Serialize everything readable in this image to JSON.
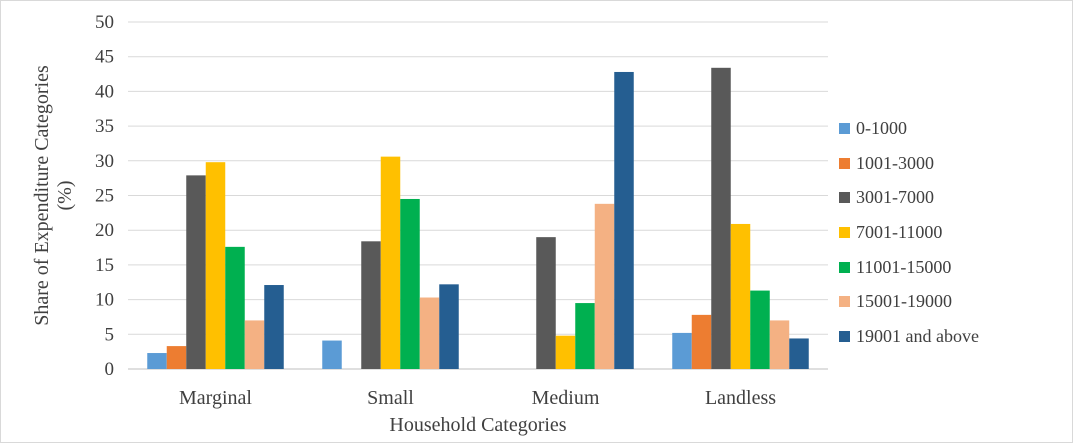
{
  "chart_data": {
    "type": "bar",
    "title": "",
    "xlabel": "Household Categories",
    "ylabel": "Share of Expenditure Categories (%)",
    "ylim": [
      0,
      50
    ],
    "yticks": [
      "0",
      "5",
      "10",
      "15",
      "20",
      "25",
      "30",
      "35",
      "40",
      "45",
      "50"
    ],
    "grid": true,
    "legend_position": "right",
    "categories": [
      "Marginal",
      "Small",
      "Medium",
      "Landless"
    ],
    "series": [
      {
        "name": "0-1000",
        "color": "#5b9bd5",
        "values": [
          2.3,
          4.1,
          0,
          5.2
        ]
      },
      {
        "name": "1001-3000",
        "color": "#ed7d31",
        "values": [
          3.3,
          0,
          0,
          7.8
        ]
      },
      {
        "name": "3001-7000",
        "color": "#595959",
        "values": [
          27.9,
          18.4,
          19.0,
          43.4
        ]
      },
      {
        "name": "7001-11000",
        "color": "#ffc000",
        "values": [
          29.8,
          30.6,
          4.8,
          20.9
        ]
      },
      {
        "name": "11001-15000",
        "color": "#00b050",
        "values": [
          17.6,
          24.5,
          9.5,
          11.3
        ]
      },
      {
        "name": "15001-19000",
        "color": "#f4b183",
        "values": [
          7.0,
          10.3,
          23.8,
          7.0
        ]
      },
      {
        "name": "19001 and above",
        "color": "#255e91",
        "values": [
          12.1,
          12.2,
          42.8,
          4.4
        ]
      }
    ]
  }
}
